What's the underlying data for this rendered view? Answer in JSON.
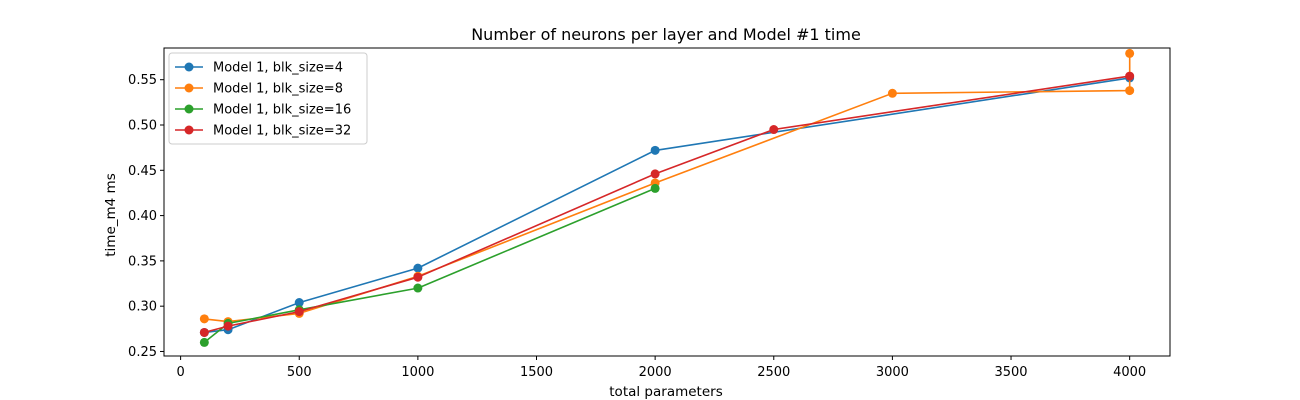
{
  "chart_data": {
    "type": "line",
    "title": "Number of neurons per layer and Model #1 time",
    "xlabel": "total parameters",
    "ylabel": "time_m4 ms",
    "xlim": [
      -70,
      4170
    ],
    "ylim": [
      0.245,
      0.585
    ],
    "xticks": [
      0,
      500,
      1000,
      1500,
      2000,
      2500,
      3000,
      3500,
      4000
    ],
    "yticks": [
      0.25,
      0.3,
      0.35,
      0.4,
      0.45,
      0.5,
      0.55
    ],
    "grid": false,
    "legend_position": "top-left",
    "series": [
      {
        "name": "Model 1, blk_size=4",
        "color": "#1f77b4",
        "x": [
          100,
          200,
          500,
          1000,
          2000,
          4000
        ],
        "y": [
          0.271,
          0.274,
          0.304,
          0.342,
          0.472,
          0.552
        ]
      },
      {
        "name": "Model 1, blk_size=8",
        "color": "#ff7f0e",
        "x": [
          100,
          200,
          500,
          1000,
          2000,
          3000,
          4000,
          4000
        ],
        "y": [
          0.286,
          0.283,
          0.292,
          0.333,
          0.436,
          0.535,
          0.538,
          0.579
        ]
      },
      {
        "name": "Model 1, blk_size=16",
        "color": "#2ca02c",
        "x": [
          100,
          200,
          500,
          1000,
          2000
        ],
        "y": [
          0.26,
          0.281,
          0.296,
          0.32,
          0.43
        ]
      },
      {
        "name": "Model 1, blk_size=32",
        "color": "#d62728",
        "x": [
          100,
          200,
          500,
          1000,
          2000,
          2500,
          4000
        ],
        "y": [
          0.271,
          0.278,
          0.294,
          0.332,
          0.446,
          0.495,
          0.554
        ]
      }
    ]
  }
}
